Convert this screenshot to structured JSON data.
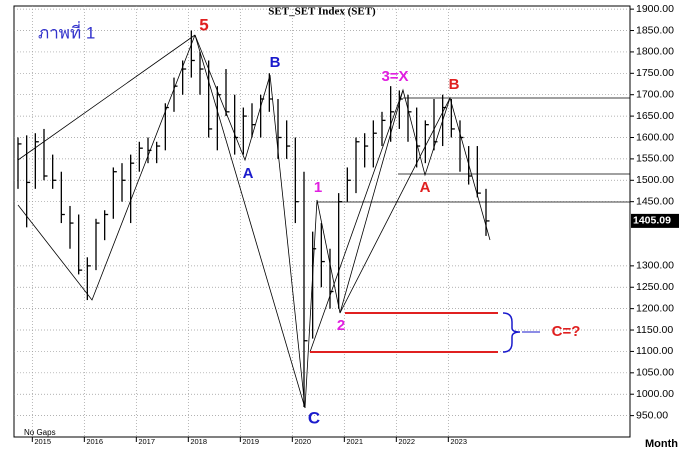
{
  "chart_data": {
    "type": "hlc",
    "title": "SET_SET Index (SET)",
    "footnote": "No Gaps",
    "x_axis_label": "Month",
    "categories": [
      null,
      null,
      "2015",
      null,
      null,
      null,
      null,
      null,
      "2016",
      null,
      null,
      null,
      null,
      null,
      "2017",
      null,
      null,
      null,
      null,
      null,
      "2018",
      null,
      null,
      null,
      null,
      null,
      "2019",
      null,
      null,
      null,
      null,
      null,
      "2020",
      null,
      null,
      null,
      null,
      null,
      "2021",
      null,
      null,
      null,
      null,
      null,
      "2022",
      null,
      null,
      null,
      null,
      null,
      "2023",
      null,
      null,
      null,
      null
    ],
    "high": [
      1600,
      1605,
      1610,
      1620,
      1560,
      1520,
      1440,
      1420,
      1320,
      1410,
      1430,
      1530,
      1540,
      1560,
      1590,
      1600,
      1590,
      1680,
      1740,
      1780,
      1850,
      1800,
      1780,
      1720,
      1760,
      1700,
      1670,
      1680,
      1700,
      1750,
      1690,
      1640,
      1600,
      1520,
      1380,
      1400,
      1340,
      1470,
      1530,
      1600,
      1610,
      1640,
      1660,
      1720,
      1710,
      1700,
      1670,
      1640,
      1690,
      1700,
      1690,
      1640,
      1580,
      1580,
      1480
    ],
    "low": [
      1480,
      1390,
      1480,
      1500,
      1480,
      1400,
      1340,
      1280,
      1220,
      1290,
      1360,
      1410,
      1450,
      1400,
      1520,
      1540,
      1540,
      1570,
      1660,
      1700,
      1740,
      1700,
      1600,
      1570,
      1650,
      1560,
      1560,
      1600,
      1600,
      1660,
      1550,
      1550,
      1400,
      970,
      1130,
      1250,
      1200,
      1200,
      1450,
      1470,
      1530,
      1530,
      1580,
      1590,
      1620,
      1590,
      1530,
      1540,
      1570,
      1580,
      1600,
      1520,
      1490,
      1460,
      1370
    ],
    "close": [
      1585,
      1495,
      1590,
      1510,
      1500,
      1420,
      1400,
      1290,
      1300,
      1400,
      1420,
      1520,
      1500,
      1540,
      1575,
      1570,
      1580,
      1670,
      1720,
      1760,
      1780,
      1760,
      1620,
      1700,
      1660,
      1600,
      1650,
      1630,
      1690,
      1690,
      1600,
      1580,
      1450,
      1125,
      1340,
      1310,
      1240,
      1450,
      1500,
      1590,
      1580,
      1610,
      1640,
      1660,
      1690,
      1660,
      1580,
      1630,
      1590,
      1670,
      1620,
      1600,
      1510,
      1470,
      1405
    ],
    "color": "#000000",
    "last_value": 1405.09,
    "ylim": [
      900,
      1912
    ],
    "yticks": [
      {
        "value": 950,
        "label": "950.00"
      },
      {
        "value": 1000,
        "label": "1000.00"
      },
      {
        "value": 1050,
        "label": "1050.00"
      },
      {
        "value": 1100,
        "label": "1100.00"
      },
      {
        "value": 1150,
        "label": "1150.00"
      },
      {
        "value": 1200,
        "label": "1200.00"
      },
      {
        "value": 1250,
        "label": "1250.00"
      },
      {
        "value": 1300,
        "label": "1300.00"
      },
      {
        "value": 1450,
        "label": "1450.00"
      },
      {
        "value": 1500,
        "label": "1500.00"
      },
      {
        "value": 1550,
        "label": "1550.00"
      },
      {
        "value": 1600,
        "label": "1600.00"
      },
      {
        "value": 1650,
        "label": "1650.00"
      },
      {
        "value": 1700,
        "label": "1700.00"
      },
      {
        "value": 1750,
        "label": "1750.00"
      },
      {
        "value": 1800,
        "label": "1800.00"
      },
      {
        "value": 1850,
        "label": "1850.00"
      },
      {
        "value": 1900,
        "label": "1900.00"
      }
    ],
    "grid": true,
    "annotations": [
      {
        "text": "ภาพที่ 1",
        "color": "#3333cc"
      },
      {
        "text": "5",
        "color": "#e02020"
      },
      {
        "text": "B",
        "color": "#1a1acc"
      },
      {
        "text": "A",
        "color": "#1a1acc"
      },
      {
        "text": "C",
        "color": "#1a1acc"
      },
      {
        "text": "1",
        "color": "#e020e0"
      },
      {
        "text": "2",
        "color": "#e020e0"
      },
      {
        "text": "3=X",
        "color": "#e020e0"
      },
      {
        "text": "B",
        "color": "#e02020"
      },
      {
        "text": "A",
        "color": "#e02020"
      },
      {
        "text": "C=?",
        "color": "#e02020"
      }
    ]
  }
}
